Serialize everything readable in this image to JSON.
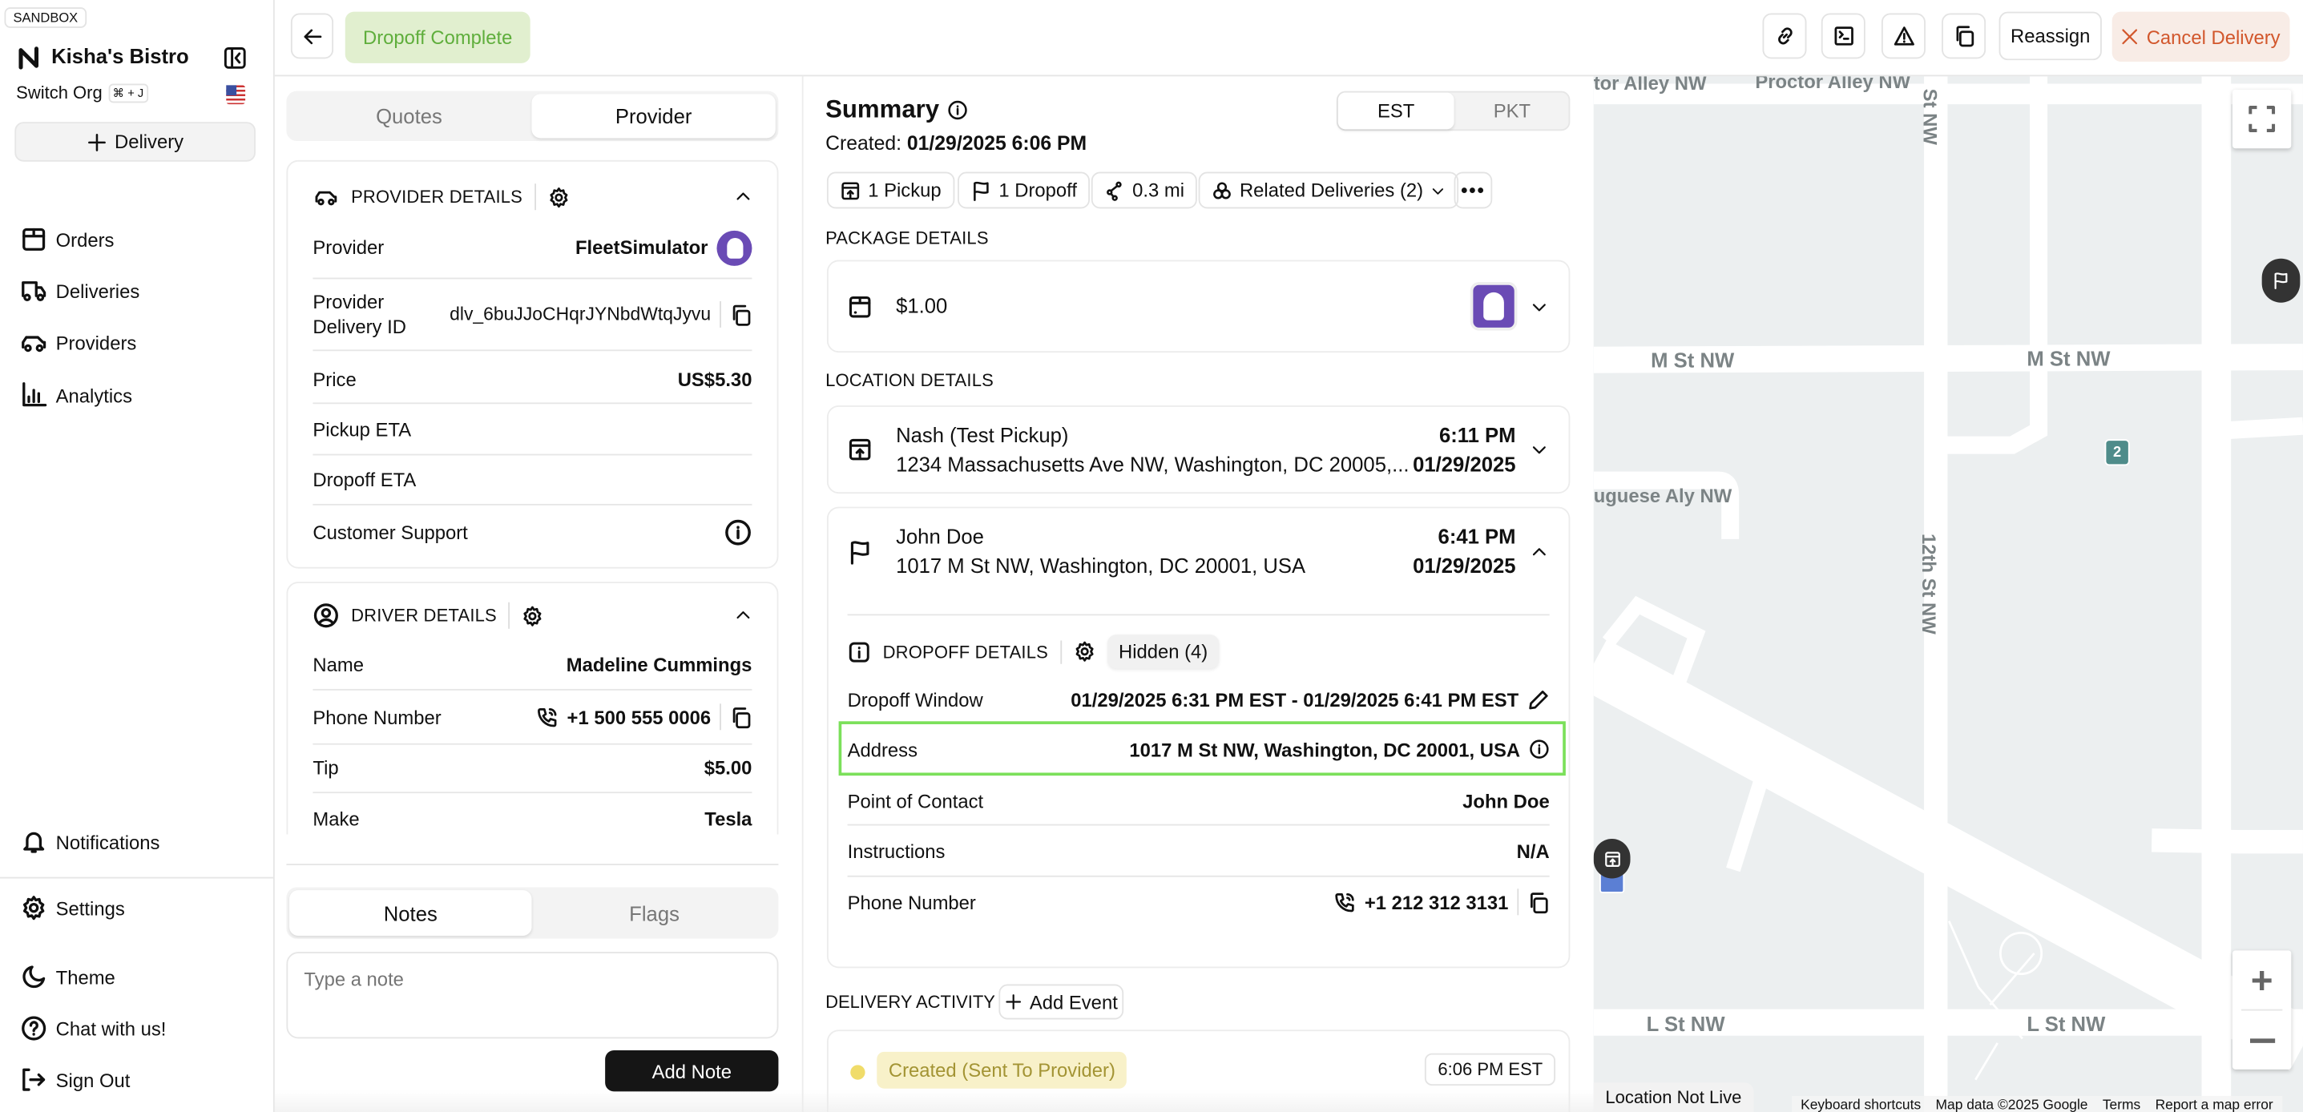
{
  "sidebar": {
    "env_badge": "SANDBOX",
    "org_name": "Kisha's Bistro",
    "switch_org": "Switch Org",
    "switch_shortcut": "⌘ + J",
    "new_delivery": "Delivery",
    "nav": [
      {
        "label": "Orders",
        "icon": "box-icon"
      },
      {
        "label": "Deliveries",
        "icon": "truck-icon"
      },
      {
        "label": "Providers",
        "icon": "car-icon"
      },
      {
        "label": "Analytics",
        "icon": "chart-icon"
      }
    ],
    "bottom": [
      {
        "label": "Notifications",
        "icon": "bell-icon"
      },
      {
        "label": "Settings",
        "icon": "gear-icon"
      },
      {
        "label": "Theme",
        "icon": "moon-icon"
      },
      {
        "label": "Chat with us!",
        "icon": "help-icon"
      },
      {
        "label": "Sign Out",
        "icon": "sign-out-icon"
      }
    ]
  },
  "topbar": {
    "status": "Dropoff Complete",
    "status_color": "#5fae3c",
    "status_bg": "#e1efcf",
    "reassign": "Reassign",
    "cancel": "Cancel Delivery",
    "cancel_color": "#d2572c"
  },
  "left_panel": {
    "tabs": [
      "Quotes",
      "Provider"
    ],
    "active_tab": "Provider",
    "provider_details": {
      "title": "PROVIDER DETAILS",
      "rows": [
        {
          "label": "Provider",
          "value": "FleetSimulator"
        },
        {
          "label": "Provider Delivery ID",
          "value": "dlv_6buJJoCHqrJYNbdWtqJyvu"
        },
        {
          "label": "Price",
          "value": "US$5.30"
        },
        {
          "label": "Pickup ETA",
          "value": ""
        },
        {
          "label": "Dropoff ETA",
          "value": ""
        },
        {
          "label": "Customer Support",
          "value": ""
        }
      ]
    },
    "driver_details": {
      "title": "DRIVER DETAILS",
      "rows": [
        {
          "label": "Name",
          "value": "Madeline Cummings"
        },
        {
          "label": "Phone Number",
          "value": "+1 500 555 0006"
        },
        {
          "label": "Tip",
          "value": "$5.00"
        },
        {
          "label": "Make",
          "value": "Tesla"
        }
      ]
    },
    "notes_tabs": [
      "Notes",
      "Flags"
    ],
    "active_notes_tab": "Notes",
    "note_placeholder": "Type a note",
    "add_note": "Add Note"
  },
  "summary": {
    "title": "Summary",
    "timezones": [
      "EST",
      "PKT"
    ],
    "active_timezone": "EST",
    "created_label": "Created:",
    "created_value": "01/29/2025 6:06 PM",
    "chips": {
      "pickups": "1 Pickup",
      "dropoffs": "1 Dropoff",
      "distance": "0.3 mi",
      "related": "Related Deliveries (2)"
    },
    "package_section": "PACKAGE DETAILS",
    "package_value": "$1.00",
    "location_section": "LOCATION DETAILS",
    "pickup": {
      "name": "Nash (Test Pickup)",
      "address": "1234 Massachusetts Ave NW, Washington, DC 20005,...",
      "time": "6:11 PM",
      "date": "01/29/2025"
    },
    "dropoff": {
      "name": "John Doe",
      "address": "1017 M St NW, Washington, DC 20001, USA",
      "time": "6:41 PM",
      "date": "01/29/2025"
    },
    "dropoff_details": {
      "title": "DROPOFF DETAILS",
      "hidden": "Hidden (4)",
      "rows": [
        {
          "label": "Dropoff Window",
          "value": "01/29/2025 6:31 PM EST - 01/29/2025 6:41 PM EST"
        },
        {
          "label": "Address",
          "value": "1017 M St NW, Washington, DC 20001, USA"
        },
        {
          "label": "Point of Contact",
          "value": "John Doe"
        },
        {
          "label": "Instructions",
          "value": "N/A"
        },
        {
          "label": "Phone Number",
          "value": "+1 212 312 3131"
        }
      ],
      "highlight_color": "#7be05a"
    },
    "activity_section": "DELIVERY ACTIVITY",
    "add_event": "Add Event",
    "activity": [
      {
        "label": "Created (Sent To Provider)",
        "time": "6:06 PM EST",
        "color": "#f0dc6a"
      }
    ]
  },
  "map": {
    "streets": {
      "proctor1": "tor Alley NW",
      "proctor2": "Proctor Alley NW",
      "st_top": "St NW",
      "m1": "M St NW",
      "m2": "M St NW",
      "portuguese": "uguese Aly NW",
      "twelfth": "12th St NW",
      "l1": "L St NW",
      "l2": "L St NW"
    },
    "cluster_count": "2",
    "location_status": "Location Not Live",
    "footer": [
      "Keyboard shortcuts",
      "Map data ©2025 Google",
      "Terms",
      "Report a map error"
    ]
  }
}
